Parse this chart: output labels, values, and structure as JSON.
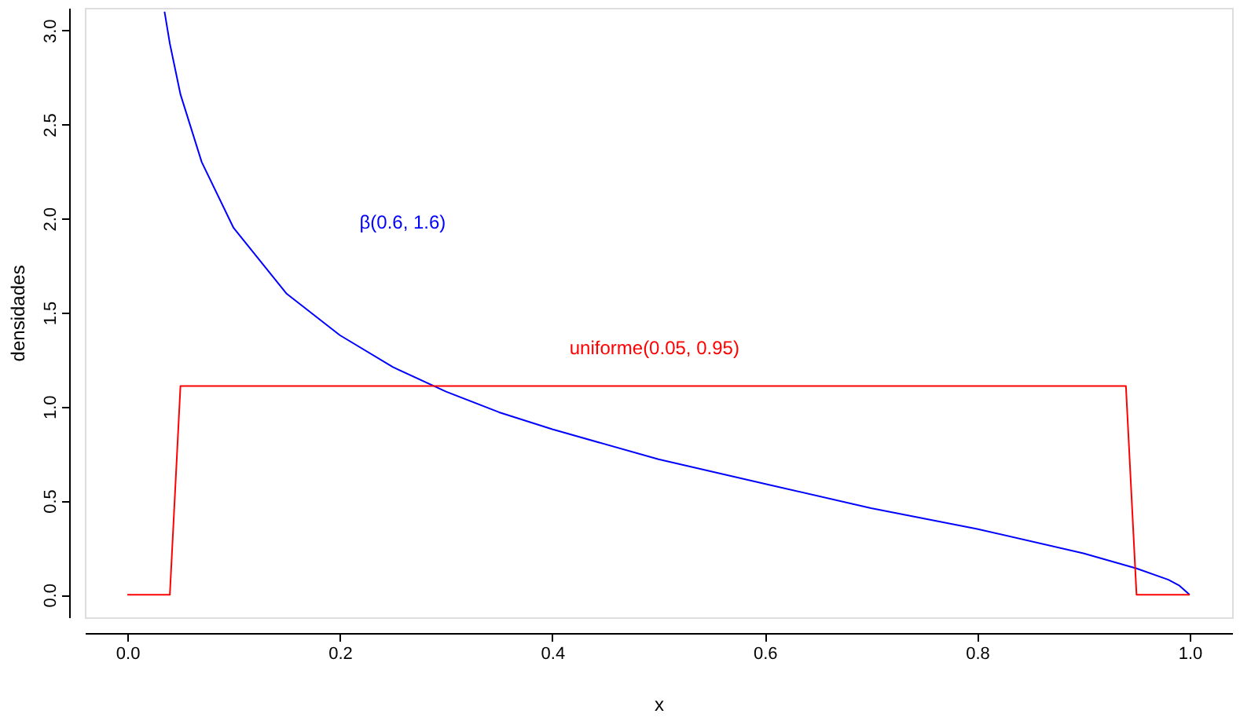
{
  "chart_data": {
    "type": "line",
    "xlabel": "x",
    "ylabel": "densidades",
    "xlim": [
      -0.04,
      1.04
    ],
    "ylim": [
      -0.12,
      3.12
    ],
    "xticks": [
      {
        "value": 0,
        "label": "0.0"
      },
      0.2,
      0.4,
      0.6,
      0.8,
      {
        "value": 1,
        "label": "1.0"
      }
    ],
    "yticks": [
      {
        "value": 0,
        "label": "0.0"
      },
      0.5,
      {
        "value": 1,
        "label": "1.0"
      },
      1.5,
      {
        "value": 2,
        "label": "2.0"
      },
      2.5,
      {
        "value": 3,
        "label": "3.0"
      }
    ],
    "grid": false,
    "line_style": "solid",
    "marker": "none",
    "series": [
      {
        "name": "β(0.6, 1.6)",
        "color": "#0000ff",
        "x": [
          0.035,
          0.04,
          0.05,
          0.07,
          0.1,
          0.15,
          0.2,
          0.25,
          0.3,
          0.35,
          0.4,
          0.5,
          0.6,
          0.7,
          0.8,
          0.9,
          0.95,
          0.98,
          0.99,
          1.0
        ],
        "values": [
          3.1,
          2.93,
          2.66,
          2.3,
          1.95,
          1.6,
          1.38,
          1.21,
          1.08,
          0.97,
          0.88,
          0.72,
          0.59,
          0.46,
          0.35,
          0.22,
          0.14,
          0.08,
          0.05,
          0.0
        ]
      },
      {
        "name": "uniforme(0.05, 0.95)",
        "color": "#ff0000",
        "x": [
          0.0,
          0.04,
          0.05,
          0.94,
          0.95,
          1.0
        ],
        "values": [
          0.0,
          0.0,
          1.11,
          1.11,
          0.0,
          0.0
        ]
      }
    ]
  }
}
